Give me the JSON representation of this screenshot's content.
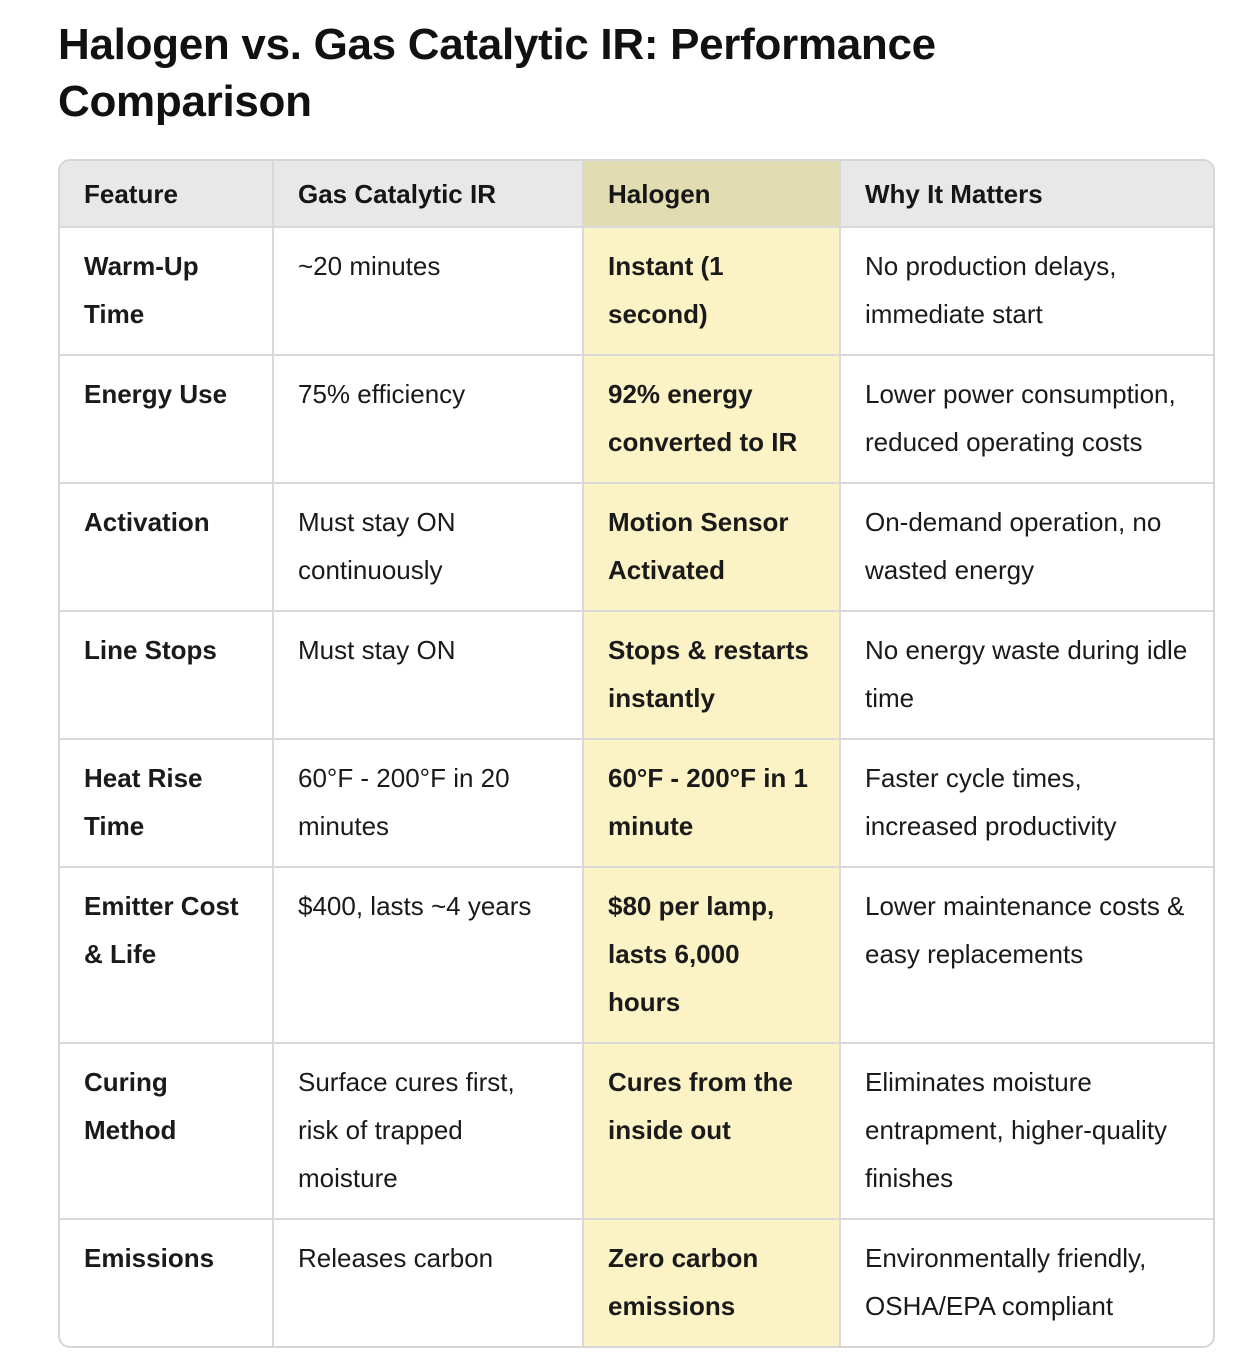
{
  "title": "Halogen vs. Gas Catalytic IR: Performance Comparison",
  "table": {
    "headers": [
      "Feature",
      "Gas Catalytic IR",
      "Halogen",
      "Why It Matters"
    ],
    "rows": [
      {
        "feature": "Warm-Up Time",
        "gas": "~20 minutes",
        "halogen": "Instant (1 second)",
        "why": "No production delays, immediate start"
      },
      {
        "feature": "Energy Use",
        "gas": "75% efficiency",
        "halogen": "92% energy converted to IR",
        "why": "Lower power consumption, reduced operating costs"
      },
      {
        "feature": "Activation",
        "gas": "Must stay ON continuously",
        "halogen": "Motion Sensor Activated",
        "why": "On-demand operation, no wasted energy"
      },
      {
        "feature": "Line Stops",
        "gas": "Must stay ON",
        "halogen": "Stops & restarts instantly",
        "why": "No energy waste during idle time"
      },
      {
        "feature": "Heat Rise Time",
        "gas": "60°F - 200°F in 20 minutes",
        "halogen": "60°F - 200°F in 1 minute",
        "why": "Faster cycle times, increased productivity"
      },
      {
        "feature": "Emitter Cost & Life",
        "gas": "$400, lasts ~4 years",
        "halogen": "$80 per lamp, lasts 6,000 hours",
        "why": "Lower maintenance costs & easy replacements"
      },
      {
        "feature": "Curing Method",
        "gas": "Surface cures first, risk of trapped moisture",
        "halogen": "Cures from the inside out",
        "why": "Eliminates moisture entrapment, higher-quality finishes"
      },
      {
        "feature": "Emissions",
        "gas": "Releases carbon",
        "halogen": "Zero carbon emissions",
        "why": "Environmentally friendly, OSHA/EPA compliant"
      }
    ]
  },
  "colors": {
    "header_bg": "#e8e8e8",
    "halogen_header_bg": "#e2dcb2",
    "halogen_column_bg": "#fbf3c5",
    "border": "#d9d9d9"
  }
}
